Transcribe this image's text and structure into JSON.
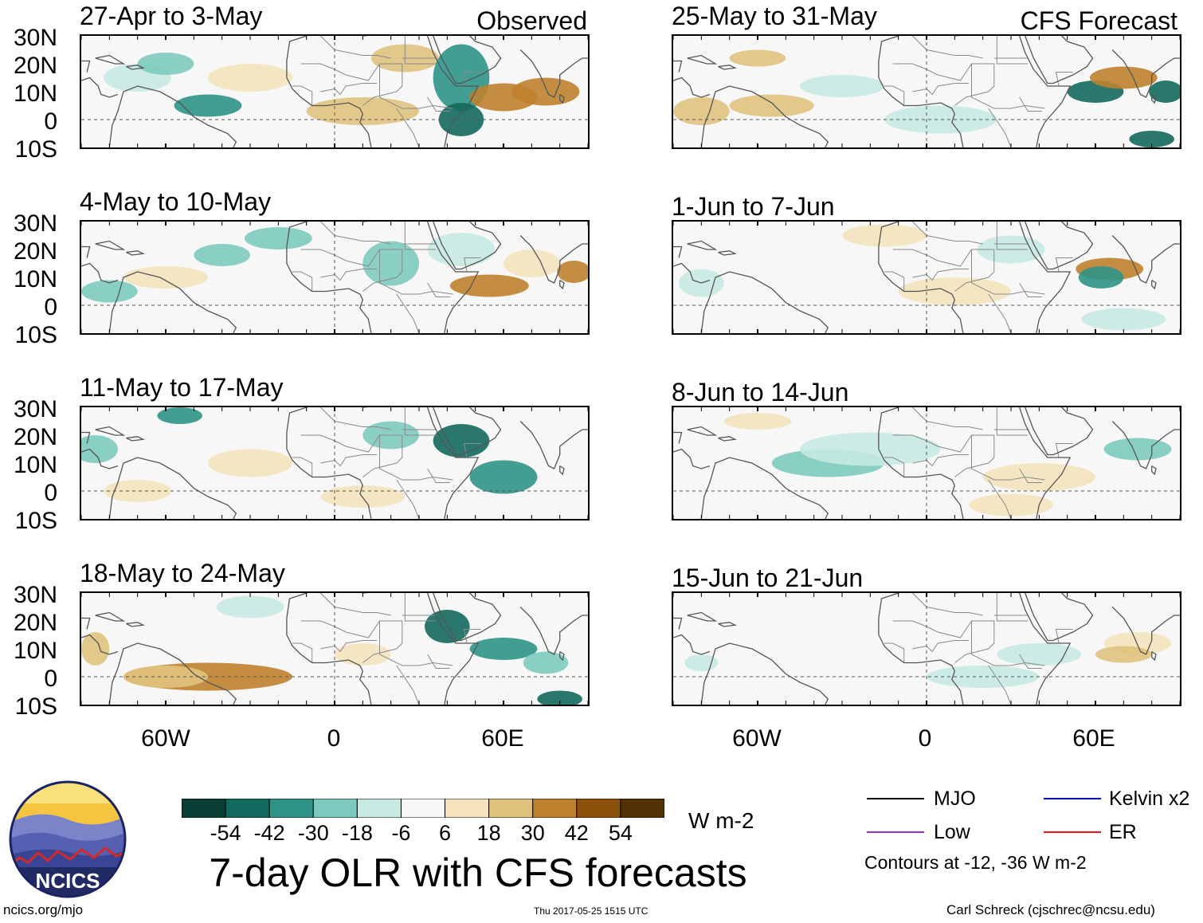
{
  "figure": {
    "title": "7-day OLR with CFS forecasts",
    "left_header": "Observed",
    "right_header": "CFS Forecast",
    "footer_left": "ncics.org/mjo",
    "footer_center": "Thu 2017-05-25 1515 UTC",
    "footer_right": "Carl Schreck (cjschrec@ncsu.edu)",
    "logo_text": "NCICS"
  },
  "chart_data": {
    "type": "heatmap",
    "variable": "7-day OLR anomaly",
    "units": "W m-2",
    "lat_ticks": [
      "30N",
      "20N",
      "10N",
      "0",
      "10S"
    ],
    "lon_ticks": [
      "60W",
      "0",
      "60E"
    ],
    "lat_range": [
      -10,
      30
    ],
    "lon_range": [
      -90,
      90
    ],
    "colorbar": {
      "units": "W m-2",
      "tick_labels": [
        "-54",
        "-42",
        "-30",
        "-18",
        "-6",
        "6",
        "18",
        "30",
        "42",
        "54"
      ],
      "colors": [
        "#0a3d33",
        "#13695d",
        "#2e9386",
        "#7ccabd",
        "#c6e9e1",
        "#f7f7f7",
        "#f4e3bd",
        "#dfc27d",
        "#bf812d",
        "#8c510a",
        "#543005"
      ]
    },
    "contour_legend": {
      "items": [
        {
          "label": "MJO",
          "color": "#000000"
        },
        {
          "label": "Low",
          "color": "#9932cc"
        },
        {
          "label": "Kelvin x2",
          "color": "#0000ff"
        },
        {
          "label": "ER",
          "color": "#e8161b"
        }
      ],
      "note": "Contours at -12, -36 W m-2"
    },
    "panels": [
      {
        "title": "27-Apr to 3-May",
        "source": "Observed"
      },
      {
        "title": "4-May to 10-May",
        "source": "Observed"
      },
      {
        "title": "11-May to 17-May",
        "source": "Observed"
      },
      {
        "title": "18-May to 24-May",
        "source": "Observed"
      },
      {
        "title": "25-May to 31-May",
        "source": "CFS Forecast"
      },
      {
        "title": "1-Jun to 7-Jun",
        "source": "CFS Forecast"
      },
      {
        "title": "8-Jun to 14-Jun",
        "source": "CFS Forecast"
      },
      {
        "title": "15-Jun to 21-Jun",
        "source": "CFS Forecast"
      }
    ]
  }
}
